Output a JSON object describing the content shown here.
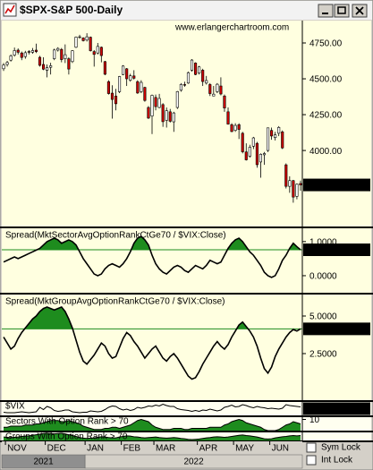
{
  "window": {
    "title": "$SPX-S&P 500-Daily"
  },
  "controls": {
    "sym_lock": "Sym Lock",
    "int_lock": "Int Lock"
  },
  "chart_data": [
    {
      "type": "candlestick",
      "watermark": "www.erlangerchartroom.com",
      "categories": [
        null,
        "NOV",
        null,
        null,
        null,
        null,
        null,
        null,
        null,
        null,
        null,
        null,
        "DEC",
        null,
        null,
        null,
        null,
        null,
        null,
        null,
        null,
        null,
        null,
        "JAN",
        null,
        null,
        null,
        null,
        null,
        null,
        null,
        null,
        null,
        "FEB",
        null,
        null,
        null,
        null,
        null,
        null,
        null,
        null,
        "MAR",
        null,
        null,
        null,
        null,
        null,
        null,
        null,
        null,
        null,
        null,
        null,
        "APR",
        null,
        null,
        null,
        null,
        null,
        null,
        null,
        null,
        null,
        "MAY",
        null,
        null,
        null,
        null,
        null,
        null,
        null,
        null,
        null,
        "JUN",
        null,
        null,
        null,
        null,
        null,
        null,
        null,
        null
      ],
      "years": [
        "2021",
        null,
        null,
        null,
        null,
        null,
        null,
        null,
        null,
        null,
        null,
        null,
        null,
        null,
        null,
        null,
        null,
        null,
        null,
        null,
        null,
        null,
        null,
        "2022",
        null,
        null,
        null,
        null,
        null,
        null,
        null,
        null,
        null,
        null,
        null,
        null,
        null,
        null,
        null,
        null,
        null,
        null,
        null,
        null,
        null,
        null,
        null,
        null,
        null,
        null,
        null,
        null,
        null,
        null,
        null,
        null,
        null,
        null,
        null,
        null,
        null,
        null,
        null,
        null,
        null,
        null,
        null,
        null,
        null,
        null,
        null,
        null,
        null,
        null,
        null,
        null,
        null,
        null,
        null,
        null,
        null,
        null,
        null
      ],
      "open": [
        4570,
        4600,
        4630,
        4665,
        4700,
        4680,
        4655,
        4690,
        4685,
        4700,
        4650,
        4600,
        4560,
        4580,
        4640,
        4700,
        4705,
        4640,
        4640,
        4620,
        4720,
        4790,
        4785,
        4770,
        4790,
        4690,
        4680,
        4720,
        4620,
        4480,
        4400,
        4380,
        4410,
        4530,
        4570,
        4490,
        4520,
        4480,
        4410,
        4440,
        4300,
        4240,
        4370,
        4300,
        4320,
        4210,
        4270,
        4200,
        4300,
        4420,
        4460,
        4470,
        4560,
        4610,
        4540,
        4560,
        4470,
        4460,
        4380,
        4410,
        4450,
        4380,
        4270,
        4180,
        4140,
        4180,
        4120,
        3990,
        3960,
        4030,
        4050,
        3920,
        3970,
        4000,
        4140,
        4090,
        4120,
        4130,
        3900,
        3750,
        3790,
        3680,
        3770
      ],
      "high": [
        4610,
        4625,
        4670,
        4718,
        4712,
        4690,
        4695,
        4700,
        4715,
        4745,
        4660,
        4650,
        4600,
        4612,
        4710,
        4720,
        4715,
        4740,
        4650,
        4700,
        4795,
        4807,
        4790,
        4818,
        4795,
        4700,
        4750,
        4725,
        4625,
        4490,
        4455,
        4430,
        4520,
        4595,
        4575,
        4535,
        4560,
        4490,
        4490,
        4445,
        4310,
        4390,
        4390,
        4395,
        4330,
        4300,
        4290,
        4270,
        4415,
        4470,
        4480,
        4550,
        4637,
        4615,
        4590,
        4570,
        4520,
        4470,
        4450,
        4470,
        4510,
        4390,
        4300,
        4190,
        4190,
        4190,
        4130,
        4050,
        4040,
        4095,
        4060,
        3980,
        3990,
        4160,
        4160,
        4130,
        4170,
        4140,
        3910,
        3820,
        3795,
        3770,
        3790
      ],
      "low": [
        4555,
        4585,
        4620,
        4655,
        4670,
        4630,
        4640,
        4670,
        4675,
        4680,
        4585,
        4560,
        4510,
        4530,
        4630,
        4690,
        4615,
        4610,
        4530,
        4610,
        4715,
        4780,
        4760,
        4760,
        4690,
        4585,
        4670,
        4615,
        4525,
        4390,
        4222,
        4280,
        4400,
        4525,
        4450,
        4480,
        4495,
        4395,
        4400,
        4340,
        4220,
        4115,
        4280,
        4295,
        4165,
        4160,
        4195,
        4130,
        4290,
        4410,
        4445,
        4465,
        4550,
        4525,
        4530,
        4450,
        4460,
        4380,
        4380,
        4400,
        4385,
        4270,
        4180,
        4128,
        4130,
        4080,
        3980,
        3930,
        3950,
        4010,
        3880,
        3810,
        3900,
        3990,
        4075,
        4070,
        4100,
        4010,
        3735,
        3705,
        3636,
        3660,
        3720
      ],
      "close": [
        4596,
        4614,
        4660,
        4697,
        4685,
        4649,
        4682,
        4688,
        4697,
        4690,
        4594,
        4567,
        4577,
        4591,
        4701,
        4712,
        4634,
        4668,
        4568,
        4696,
        4791,
        4793,
        4766,
        4793,
        4696,
        4670,
        4726,
        4662,
        4532,
        4397,
        4356,
        4326,
        4516,
        4589,
        4500,
        4521,
        4504,
        4401,
        4475,
        4349,
        4226,
        4385,
        4306,
        4363,
        4201,
        4278,
        4204,
        4262,
        4411,
        4461,
        4456,
        4543,
        4631,
        4530,
        4583,
        4481,
        4488,
        4397,
        4393,
        4462,
        4394,
        4296,
        4184,
        4132,
        4175,
        4147,
        3991,
        3935,
        4023,
        4088,
        3901,
        3974,
        3979,
        4158,
        4101,
        4109,
        4161,
        4018,
        3750,
        3790,
        3675,
        3765,
        3759.89
      ],
      "colors": {
        "up": "#ffffff",
        "down": "#cc0000",
        "outline": "#000000"
      },
      "ylim": [
        3470,
        4906
      ],
      "yticks": [
        {
          "value": 4750,
          "label": "4750.00"
        },
        {
          "value": 4500,
          "label": "4500.00"
        },
        {
          "value": 4250,
          "label": "4250.00"
        },
        {
          "value": 4000,
          "label": "4000.00"
        }
      ]
    },
    {
      "type": "line",
      "title": "Spread(MktSectorAvgOptionRankCtGe70 / $VIX:Close)",
      "color": "#000000",
      "fill_color": "#1e8c1e",
      "values": [
        0.4,
        0.45,
        0.5,
        0.55,
        0.5,
        0.55,
        0.6,
        0.65,
        0.7,
        0.75,
        0.8,
        0.9,
        1.0,
        1.05,
        1.1,
        1.05,
        0.95,
        1.0,
        1.05,
        1.0,
        0.9,
        0.7,
        0.5,
        0.35,
        0.2,
        0.05,
        0.0,
        0.05,
        0.2,
        0.3,
        0.35,
        0.3,
        0.25,
        0.35,
        0.5,
        0.7,
        0.95,
        1.1,
        1.15,
        1.05,
        0.9,
        0.6,
        0.35,
        0.2,
        0.1,
        0.05,
        0.15,
        0.25,
        0.3,
        0.25,
        0.15,
        0.1,
        0.2,
        0.3,
        0.25,
        0.2,
        0.3,
        0.45,
        0.4,
        0.35,
        0.4,
        0.6,
        0.8,
        0.95,
        1.05,
        1.1,
        1.0,
        0.85,
        0.7,
        0.6,
        0.45,
        0.3,
        0.1,
        0.0,
        -0.05,
        0.0,
        0.2,
        0.45,
        0.6,
        0.8,
        0.95,
        0.85,
        0.7599
      ],
      "ylim": [
        -0.5,
        1.39
      ],
      "yticks": [
        {
          "value": 1,
          "label": "1.0000"
        },
        {
          "value": 0,
          "label": "0.0000"
        }
      ]
    },
    {
      "type": "line",
      "title": "Spread(MktGroupAvgOptionRankCtGe70 / $VIX:Close)",
      "color": "#000000",
      "fill_color": "#1e8c1e",
      "values": [
        3.6,
        3.2,
        2.8,
        3.0,
        3.5,
        3.9,
        4.2,
        4.5,
        4.8,
        5.0,
        5.3,
        5.5,
        5.6,
        5.5,
        5.4,
        5.5,
        5.6,
        5.3,
        4.8,
        4.2,
        3.4,
        2.6,
        2.0,
        1.8,
        2.1,
        2.4,
        2.8,
        3.2,
        3.0,
        2.5,
        2.2,
        2.3,
        2.9,
        3.5,
        3.9,
        3.7,
        3.3,
        3.0,
        2.6,
        2.2,
        2.5,
        2.8,
        3.0,
        2.6,
        2.2,
        2.0,
        2.3,
        2.5,
        2.2,
        1.8,
        1.4,
        1.0,
        0.8,
        0.9,
        1.3,
        1.8,
        2.2,
        2.6,
        3.0,
        3.3,
        3.0,
        2.8,
        3.1,
        3.6,
        4.0,
        4.4,
        4.6,
        4.3,
        4.0,
        3.6,
        3.0,
        2.2,
        1.5,
        1.2,
        1.6,
        2.3,
        2.8,
        3.2,
        3.6,
        3.9,
        4.1,
        4.0,
        4.1451
      ],
      "ylim": [
        -0.6,
        6.43
      ],
      "yticks": [
        {
          "value": 5,
          "label": "5.0000"
        },
        {
          "value": 2.5,
          "label": "2.5000"
        }
      ]
    },
    {
      "type": "line",
      "title": "$VIX",
      "color": "#000000",
      "values": [
        17,
        16,
        16,
        16,
        17,
        18,
        17,
        16,
        17,
        18,
        28,
        23,
        30,
        27,
        21,
        19,
        20,
        22,
        22,
        18,
        17,
        16,
        17,
        17,
        20,
        19,
        18,
        19,
        23,
        28,
        31,
        30,
        25,
        22,
        24,
        21,
        23,
        28,
        26,
        28,
        31,
        30,
        33,
        31,
        35,
        32,
        30,
        30,
        25,
        23,
        22,
        21,
        19,
        21,
        19,
        22,
        21,
        24,
        22,
        20,
        22,
        28,
        30,
        33,
        29,
        30,
        34,
        32,
        29,
        27,
        30,
        28,
        27,
        25,
        26,
        25,
        24,
        26,
        34,
        32,
        31,
        30,
        28.95
      ],
      "ylim": [
        10,
        40
      ],
      "yticks": []
    },
    {
      "type": "line",
      "title": "Sectors With Option Rank > 70",
      "color": "#000000",
      "fill_color": "#1e8c1e",
      "values": [
        3,
        3,
        4,
        4,
        4,
        4,
        5,
        5,
        5,
        6,
        6,
        7,
        8,
        9,
        9,
        9,
        8,
        8,
        9,
        8,
        7,
        6,
        4,
        3,
        2,
        1,
        1,
        1,
        2,
        2,
        3,
        3,
        2,
        3,
        4,
        5,
        7,
        9,
        10,
        9,
        8,
        5,
        3,
        2,
        1,
        1,
        1,
        2,
        2,
        2,
        1,
        1,
        2,
        2,
        2,
        2,
        2,
        3,
        3,
        3,
        3,
        5,
        6,
        8,
        9,
        10,
        9,
        7,
        6,
        5,
        4,
        3,
        1,
        0,
        0,
        0,
        1,
        3,
        5,
        6,
        8,
        7,
        6
      ],
      "ylim": [
        0,
        12
      ],
      "yticks": [
        10
      ]
    },
    {
      "type": "line",
      "title": "Groups With Option Rank > 70",
      "color": "#000000",
      "fill_color": "#1e8c1e",
      "values": [
        60,
        55,
        50,
        55,
        60,
        70,
        75,
        80,
        90,
        100,
        110,
        120,
        125,
        120,
        115,
        120,
        125,
        115,
        100,
        85,
        70,
        50,
        40,
        35,
        40,
        45,
        55,
        65,
        60,
        50,
        45,
        45,
        60,
        70,
        80,
        75,
        65,
        60,
        50,
        45,
        50,
        55,
        60,
        50,
        45,
        40,
        45,
        50,
        45,
        35,
        30,
        20,
        15,
        20,
        25,
        35,
        45,
        50,
        60,
        65,
        60,
        55,
        60,
        70,
        80,
        90,
        95,
        85,
        80,
        70,
        60,
        45,
        30,
        25,
        30,
        45,
        55,
        65,
        70,
        80,
        85,
        80,
        85
      ],
      "ylim": [
        0,
        140
      ],
      "yticks": []
    }
  ]
}
